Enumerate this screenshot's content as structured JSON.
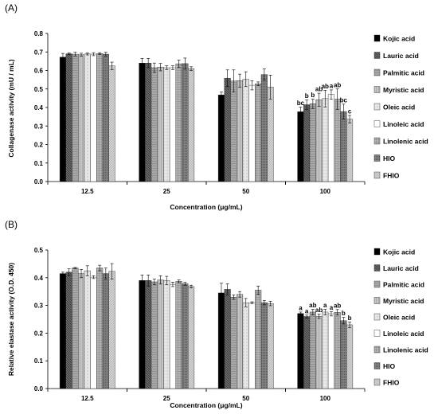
{
  "chart_data": [
    {
      "panel_label": "(A)",
      "type": "bar",
      "xlabel": "Concentration (μg/mL)",
      "ylabel": "Collagenase activity (mU / mL)",
      "ylim": [
        0,
        0.8
      ],
      "yticks": [
        0.0,
        0.1,
        0.2,
        0.3,
        0.4,
        0.5,
        0.6,
        0.7,
        0.8
      ],
      "ytick_decimals": 1,
      "categories": [
        "12.5",
        "25",
        "50",
        "100"
      ],
      "legend_position": "right",
      "series": [
        {
          "name": "Kojic acid",
          "values": [
            0.672,
            0.64,
            0.468,
            0.377
          ],
          "errors": [
            0.02,
            0.025,
            0.015,
            0.025
          ]
        },
        {
          "name": "Lauric acid",
          "values": [
            0.69,
            0.64,
            0.558,
            0.415
          ],
          "errors": [
            0.005,
            0.025,
            0.045,
            0.025
          ]
        },
        {
          "name": "Palmitic acid",
          "values": [
            0.688,
            0.615,
            0.543,
            0.42
          ],
          "errors": [
            0.01,
            0.025,
            0.06,
            0.025
          ]
        },
        {
          "name": "Myristic acid",
          "values": [
            0.685,
            0.618,
            0.545,
            0.442
          ],
          "errors": [
            0.008,
            0.02,
            0.035,
            0.035
          ]
        },
        {
          "name": "Oleic acid",
          "values": [
            0.689,
            0.615,
            0.553,
            0.448
          ],
          "errors": [
            0.005,
            0.01,
            0.04,
            0.045
          ]
        },
        {
          "name": "Linoleic acid",
          "values": [
            0.688,
            0.615,
            0.52,
            0.47
          ],
          "errors": [
            0.008,
            0.01,
            0.025,
            0.025
          ]
        },
        {
          "name": "Linolenic acid",
          "values": [
            0.691,
            0.636,
            0.528,
            0.445
          ],
          "errors": [
            0.005,
            0.02,
            0.01,
            0.055
          ]
        },
        {
          "name": "HIO",
          "values": [
            0.688,
            0.637,
            0.578,
            0.378
          ],
          "errors": [
            0.01,
            0.03,
            0.03,
            0.04
          ]
        },
        {
          "name": "FHIO",
          "values": [
            0.625,
            0.61,
            0.51,
            0.337
          ],
          "errors": [
            0.02,
            0.01,
            0.065,
            0.02
          ]
        }
      ],
      "annotations": [
        {
          "category": "100",
          "series": "Kojic acid",
          "text": "bc"
        },
        {
          "category": "100",
          "series": "Lauric acid",
          "text": "b"
        },
        {
          "category": "100",
          "series": "Palmitic acid",
          "text": "b"
        },
        {
          "category": "100",
          "series": "Myristic acid",
          "text": "ab"
        },
        {
          "category": "100",
          "series": "Oleic acid",
          "text": "ab"
        },
        {
          "category": "100",
          "series": "Linoleic acid",
          "text": "a"
        },
        {
          "category": "100",
          "series": "Linolenic acid",
          "text": "ab"
        },
        {
          "category": "100",
          "series": "HIO",
          "text": "bc"
        },
        {
          "category": "100",
          "series": "FHIO",
          "text": "c"
        }
      ]
    },
    {
      "panel_label": "(B)",
      "type": "bar",
      "xlabel": "Concentration (μg/mL)",
      "ylabel": "Relative elastase activity (O.D. 450)",
      "ylim": [
        0,
        0.5
      ],
      "yticks": [
        0.0,
        0.1,
        0.2,
        0.3,
        0.4,
        0.5
      ],
      "ytick_decimals": 1,
      "categories": [
        "12.5",
        "25",
        "50",
        "100"
      ],
      "legend_position": "right",
      "series": [
        {
          "name": "Kojic acid",
          "values": [
            0.415,
            0.39,
            0.345,
            0.271
          ],
          "errors": [
            0.005,
            0.02,
            0.035,
            0.005
          ]
        },
        {
          "name": "Lauric acid",
          "values": [
            0.42,
            0.39,
            0.358,
            0.26
          ],
          "errors": [
            0.012,
            0.02,
            0.02,
            0.005
          ]
        },
        {
          "name": "Palmitic acid",
          "values": [
            0.435,
            0.385,
            0.33,
            0.276
          ],
          "errors": [
            0.002,
            0.01,
            0.008,
            0.01
          ]
        },
        {
          "name": "Myristic acid",
          "values": [
            0.415,
            0.392,
            0.34,
            0.261
          ],
          "errors": [
            0.015,
            0.015,
            0.01,
            0.008
          ]
        },
        {
          "name": "Oleic acid",
          "values": [
            0.425,
            0.39,
            0.31,
            0.276
          ],
          "errors": [
            0.018,
            0.015,
            0.015,
            0.01
          ]
        },
        {
          "name": "Linoleic acid",
          "values": [
            0.402,
            0.376,
            0.31,
            0.27
          ],
          "errors": [
            0.005,
            0.008,
            0.003,
            0.008
          ]
        },
        {
          "name": "Linolenic acid",
          "values": [
            0.435,
            0.387,
            0.355,
            0.275
          ],
          "errors": [
            0.01,
            0.005,
            0.015,
            0.01
          ]
        },
        {
          "name": "HIO",
          "values": [
            0.415,
            0.378,
            0.31,
            0.245
          ],
          "errors": [
            0.02,
            0.005,
            0.008,
            0.012
          ]
        },
        {
          "name": "FHIO",
          "values": [
            0.423,
            0.368,
            0.307,
            0.23
          ],
          "errors": [
            0.028,
            0.005,
            0.008,
            0.01
          ]
        }
      ],
      "annotations": [
        {
          "category": "100",
          "series": "Kojic acid",
          "text": "a"
        },
        {
          "category": "100",
          "series": "Lauric acid",
          "text": "a"
        },
        {
          "category": "100",
          "series": "Palmitic acid",
          "text": "ab"
        },
        {
          "category": "100",
          "series": "Myristic acid",
          "text": "ab"
        },
        {
          "category": "100",
          "series": "Oleic acid",
          "text": "a"
        },
        {
          "category": "100",
          "series": "Linoleic acid",
          "text": "a"
        },
        {
          "category": "100",
          "series": "Linolenic acid",
          "text": "ab"
        },
        {
          "category": "100",
          "series": "HIO",
          "text": "b"
        },
        {
          "category": "100",
          "series": "FHIO",
          "text": "b"
        }
      ]
    }
  ],
  "colors": {
    "Kojic acid": "#000000",
    "Lauric acid": "#555555",
    "Palmitic acid": "#a6a6a6",
    "Myristic acid": "#c0c0c0",
    "Oleic acid": "#dddddd",
    "Linoleic acid": "#ffffff",
    "Linolenic acid": "#b8b8b8",
    "HIO": "#7a7a7a",
    "FHIO": "#d0d0d0",
    "axis": "#000000",
    "error_bar": "#000000"
  }
}
